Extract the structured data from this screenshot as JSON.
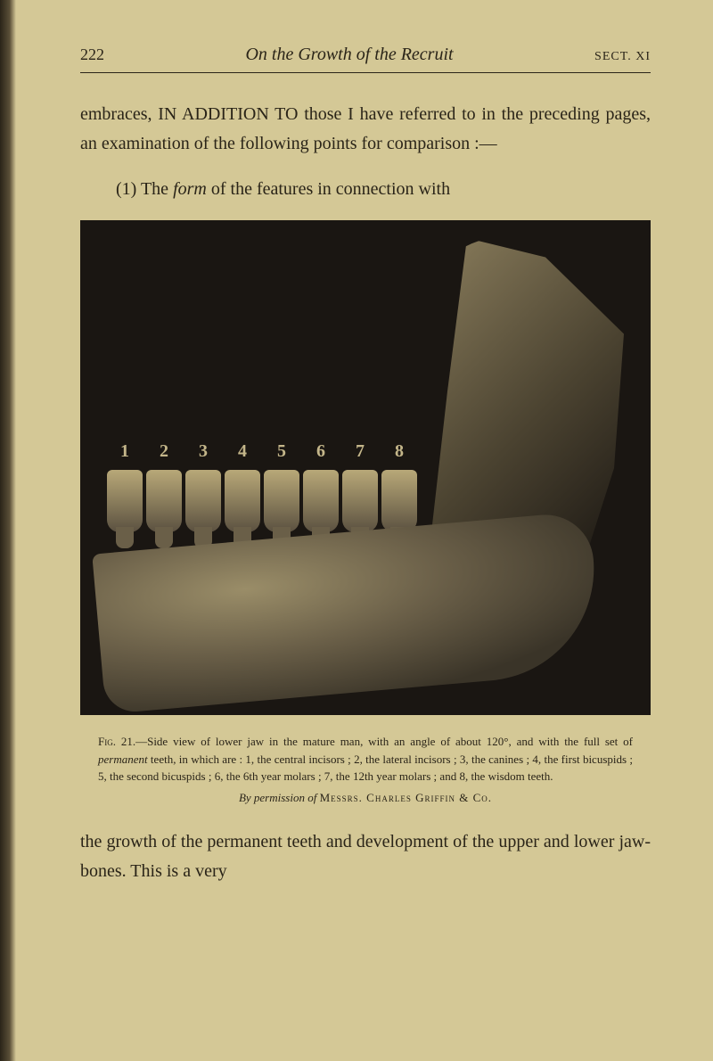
{
  "page": {
    "number": "222",
    "running_title": "On the Growth of the Recruit",
    "section_marker": "SECT. XI"
  },
  "paragraphs": {
    "p1_part1": "embraces, ",
    "p1_caps": "IN ADDITION TO",
    "p1_part2": " those I have referred to in the preceding pages, an examination of the following points for comparison :—",
    "p2_prefix": "(1) The ",
    "p2_italic": "form",
    "p2_suffix": " of the features in connection with"
  },
  "figure": {
    "teeth_labels": [
      "1",
      "2",
      "3",
      "4",
      "5",
      "6",
      "7",
      "8"
    ],
    "caption_label": "Fig. 21.",
    "caption_text_part1": "—Side view of lower jaw in the mature man, with an angle of about 120°, and with the full set of ",
    "caption_italic1": "permanent",
    "caption_text_part2": " teeth, in which are : 1, the central incisors ; 2, the lateral incisors ; 3, the canines ; 4, the first bicuspids ; 5, the second bicuspids ; 6, the 6th year molars ; 7, the 12th year molars ; and 8, the wisdom teeth.",
    "credit_prefix": "By permission of ",
    "credit_name": "Messrs. Charles Griffin & Co."
  },
  "closing_paragraph": "the growth of the permanent teeth and development of the upper and lower jaw-bones.  This is a very",
  "styling": {
    "background_color": "#d4c896",
    "text_color": "#2a2418",
    "body_fontsize": 20,
    "caption_fontsize": 13,
    "figure_bg": "#1a1612"
  }
}
